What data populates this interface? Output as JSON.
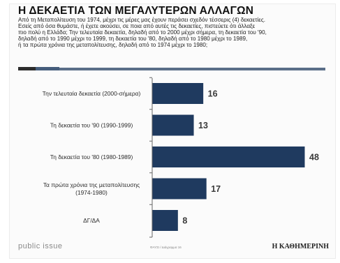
{
  "title": "Η ΔΕΚΑΕΤΙΑ ΤΩΝ ΜΕΓΑΛΥΤΕΡΩΝ ΑΛΛΑΓΩΝ",
  "subtitle_lines": [
    "Από τη Μεταπολίτευση του 1974, μέχρι τις μέρες μας έχουν περάσει σχεδόν τέσσερις (4) δεκαετίες.",
    "Εσείς από όσα θυμάστε, ή έχετε ακούσει, σε ποια από αυτές τις δεκαετίες, πιστεύετε ότι άλλαξε",
    "πιο πολύ η Ελλάδα; Την τελευταία δεκαετία, δηλαδή από το 2000 μέχρι σήμερα, τη δεκαετία του '90,",
    "δηλαδή από το 1990 μέχρι το 1999, τη δεκαετία του '80, δηλαδή από το 1980 μέχρι το 1989,",
    "ή τα πρώτα χρόνια της μεταπολίτευσης, δηλαδή από το 1974 μέχρι το 1980;"
  ],
  "footer": {
    "brand": "public issue",
    "page_note": "ΦΑΥΣΙ / Διάγραμμα 16",
    "publisher": "Η ΚΑΘΗΜΕΡΙΝΗ"
  },
  "chart_data": {
    "type": "bar",
    "orientation": "horizontal",
    "categories": [
      [
        "Την τελευταία δεκαετία (2000-σήμερα)"
      ],
      [
        "Τη δεκαετία του '90 (1990-1999)"
      ],
      [
        "Τη δεκαετία του '80 (1980-1989)"
      ],
      [
        "Τα πρώτα χρόνια της μεταπολίτευσης",
        "(1974-1980)"
      ],
      [
        "ΔΓ/ΔΑ"
      ]
    ],
    "values": [
      16,
      13,
      48,
      17,
      8
    ],
    "xlim": [
      0,
      48
    ],
    "colors": {
      "bar": "#1f3a5f",
      "axis": "#666666",
      "value_label": "#3a3a3a",
      "category_label": "#2a2a2a"
    },
    "grid": false,
    "legend": "none"
  }
}
